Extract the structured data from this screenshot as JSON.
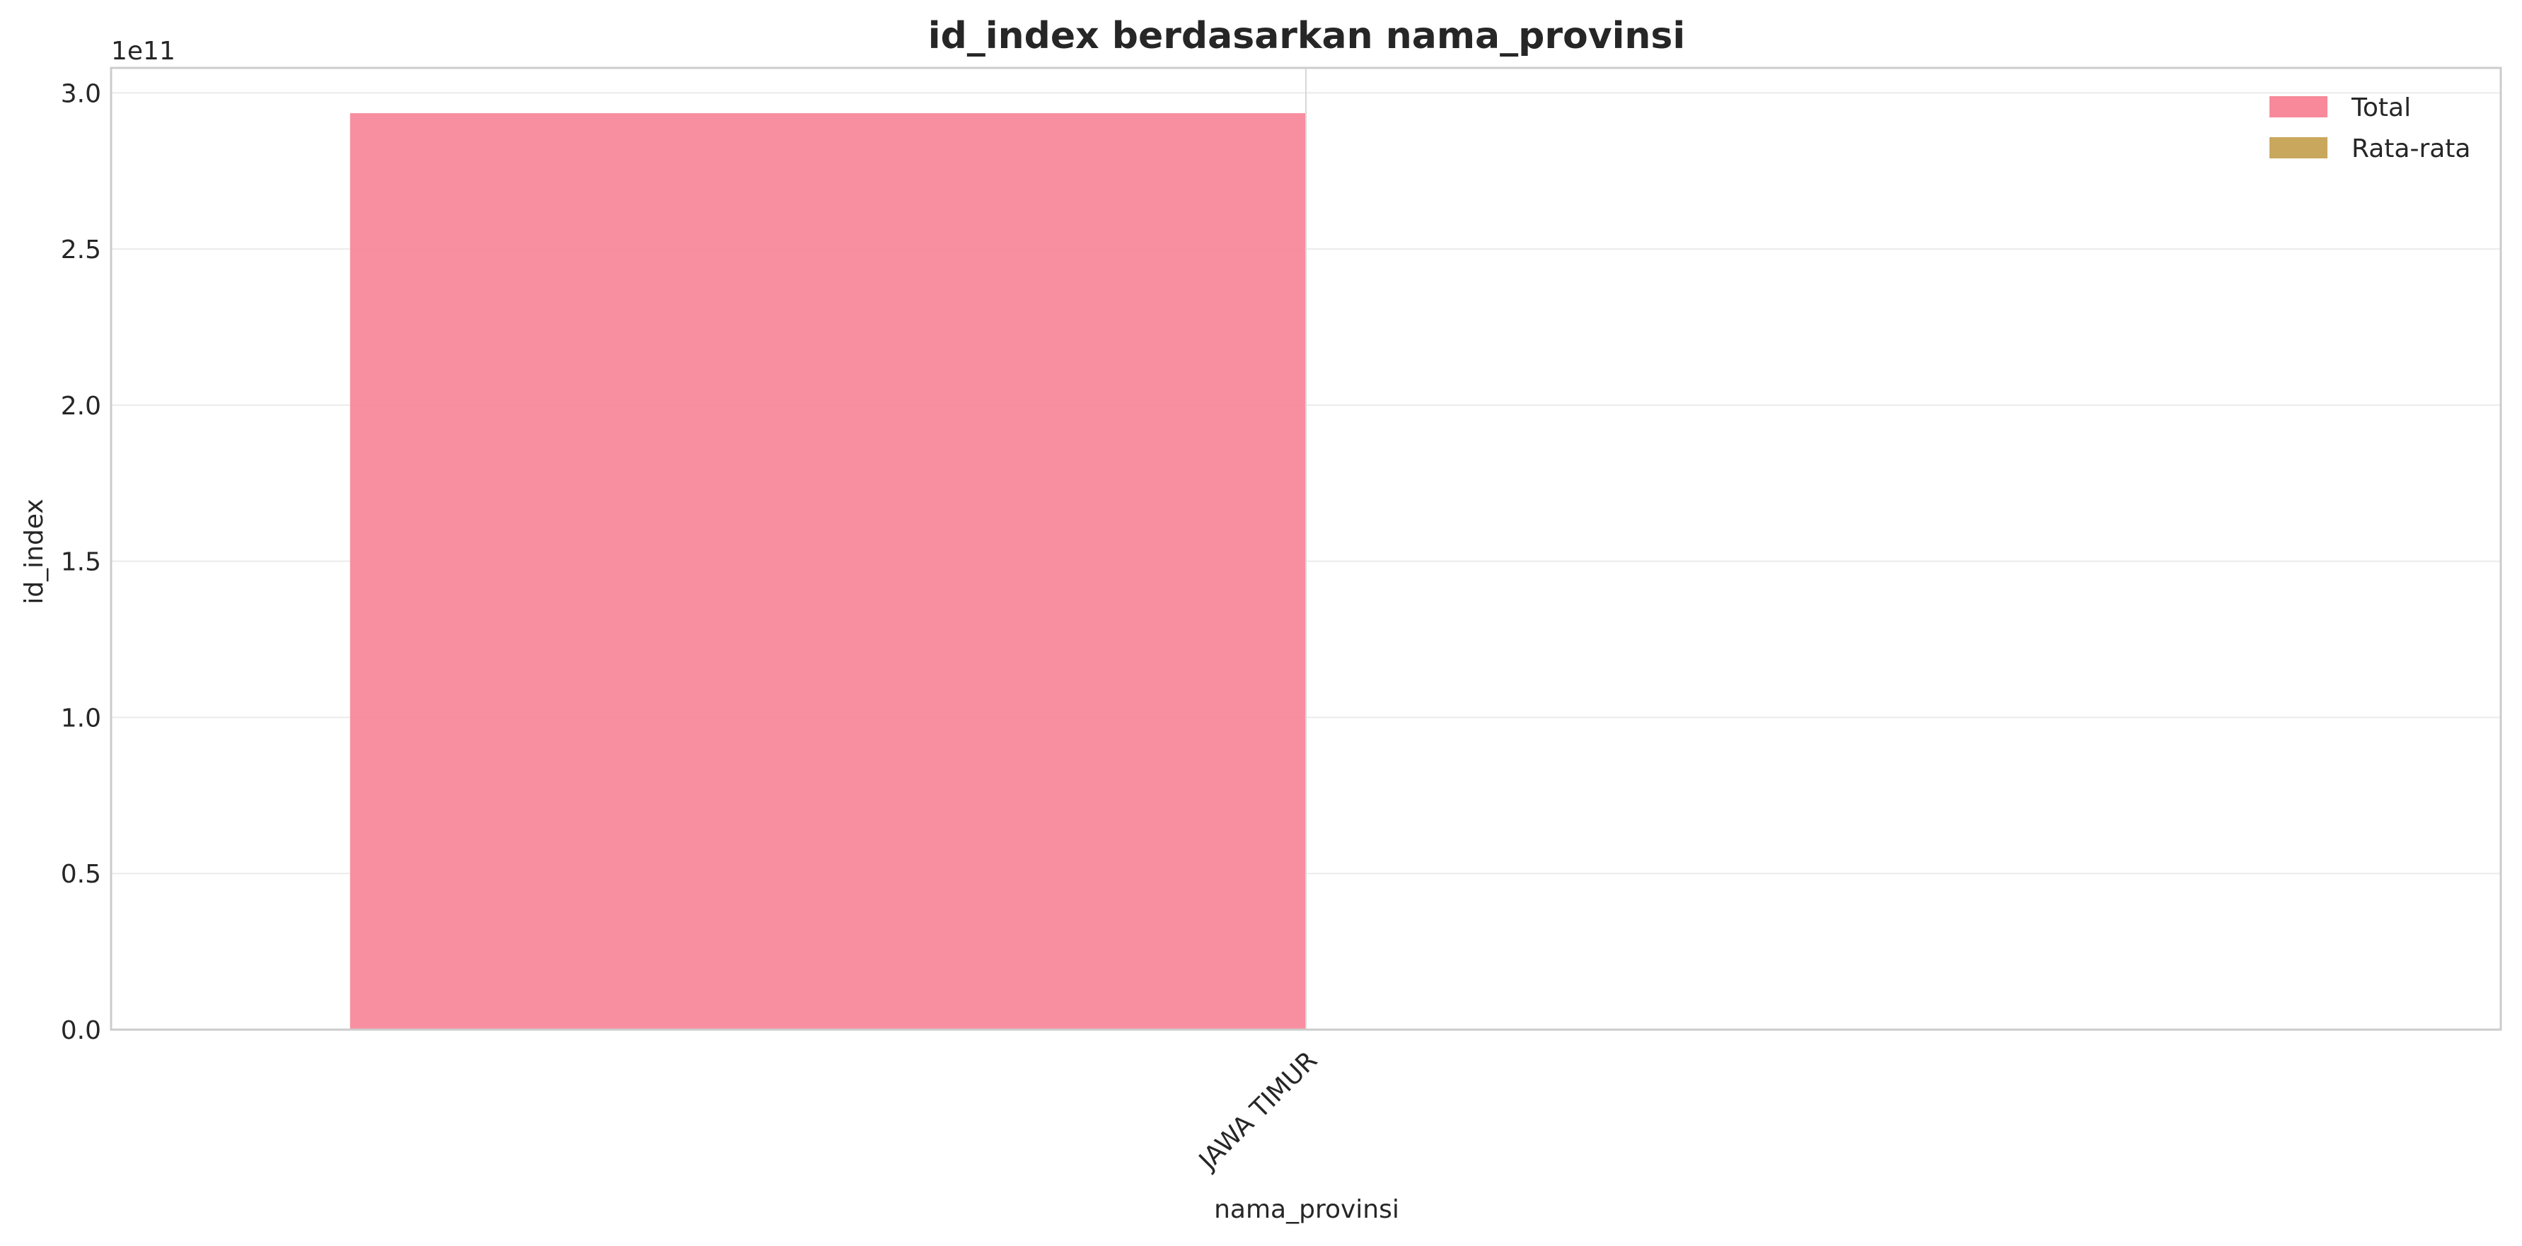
{
  "chart_data": {
    "type": "bar",
    "title": "id_index berdasarkan nama_provinsi",
    "xlabel": "nama_provinsi",
    "ylabel": "id_index",
    "y_offset_label": "1e11",
    "categories": [
      "JAWA TIMUR"
    ],
    "series": [
      {
        "name": "Total",
        "values": [
          293500000000.0
        ],
        "color": "#f7899b"
      },
      {
        "name": "Rata-rata",
        "values": [
          0
        ],
        "color": "#c9a85e"
      }
    ],
    "ylim": [
      0,
      308000000000.0
    ],
    "yticks": [
      0,
      50000000000.0,
      100000000000.0,
      150000000000.0,
      200000000000.0,
      250000000000.0,
      300000000000.0
    ],
    "ytick_labels": [
      "0.0",
      "0.5",
      "1.0",
      "1.5",
      "2.0",
      "2.5",
      "3.0"
    ],
    "x_tick_rotation_deg": -45,
    "grid": true,
    "legend_position": "top-right"
  }
}
